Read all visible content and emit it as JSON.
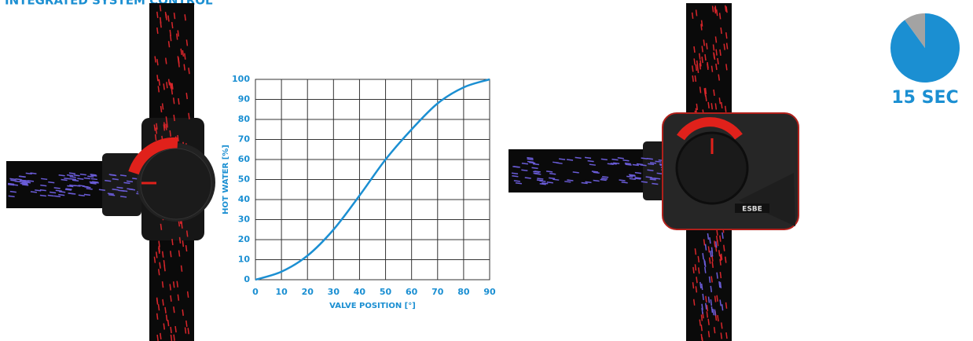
{
  "header": {
    "title": "INTEGRATED SYSTEM CONTROL"
  },
  "actuator": {
    "brand": "ESBE"
  },
  "chart_data": [
    {
      "type": "line",
      "x": [
        0,
        10,
        20,
        30,
        40,
        50,
        60,
        70,
        80,
        90
      ],
      "values": [
        0,
        4,
        12,
        25,
        42,
        60,
        75,
        88,
        96,
        100
      ],
      "color": "#1b8fd2",
      "xlim": [
        0,
        90
      ],
      "ylim": [
        0,
        100
      ],
      "xticks": [
        0,
        10,
        20,
        30,
        40,
        50,
        60,
        70,
        80,
        90
      ],
      "yticks": [
        0,
        10,
        20,
        30,
        40,
        50,
        60,
        70,
        80,
        90,
        100
      ],
      "xlabel": "VALVE POSITION [°]",
      "ylabel": "HOT WATER [%]",
      "grid": true
    },
    {
      "type": "pie",
      "title": "15 SEC",
      "values": [
        90,
        10
      ],
      "colors": [
        "#1b8fd2",
        "#a3a3a3"
      ]
    }
  ]
}
